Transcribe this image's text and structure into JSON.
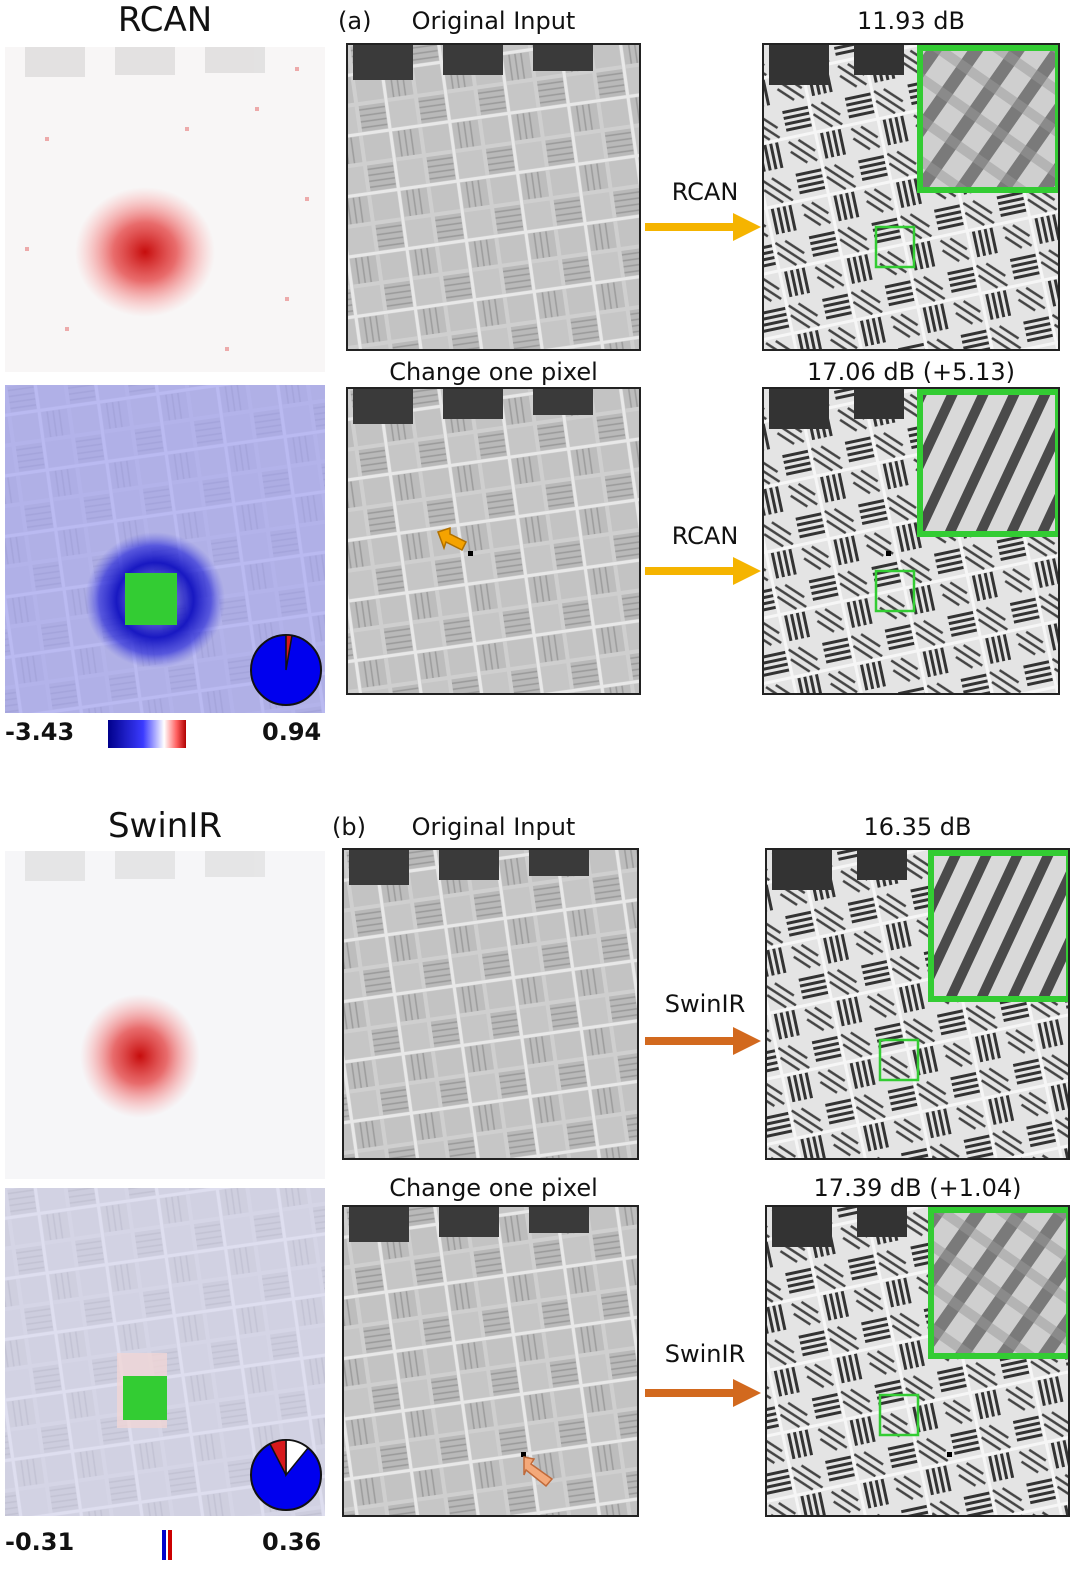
{
  "colors": {
    "heat_red": "#d7191c",
    "heat_blue": "#1515d0",
    "green_box": "#33cc33",
    "rcan_arrow": "#f5b400",
    "swinir_arrow": "#d2691e",
    "pointer_rcan": "#f5a300",
    "pointer_swinir": "#f4a97a"
  },
  "panels": [
    {
      "model": "RCAN",
      "tag": "(a)",
      "original_label": "Original Input",
      "changed_label": "Change one pixel",
      "arrow_label": "RCAN",
      "psnr_original": "11.93 dB",
      "psnr_changed": "17.06 dB (+5.13)",
      "range_min": "-3.43",
      "range_max": "0.94",
      "pie_icon": "pie-chart-icon",
      "pointer_icon": "pointer-arrow-icon"
    },
    {
      "model": "SwinIR",
      "tag": "(b)",
      "original_label": "Original Input",
      "changed_label": "Change one pixel",
      "arrow_label": "SwinIR",
      "psnr_original": "16.35 dB",
      "psnr_changed": "17.39 dB (+1.04)",
      "range_min": "-0.31",
      "range_max": "0.36",
      "pie_icon": "pie-chart-icon",
      "pointer_icon": "pointer-arrow-icon"
    }
  ]
}
